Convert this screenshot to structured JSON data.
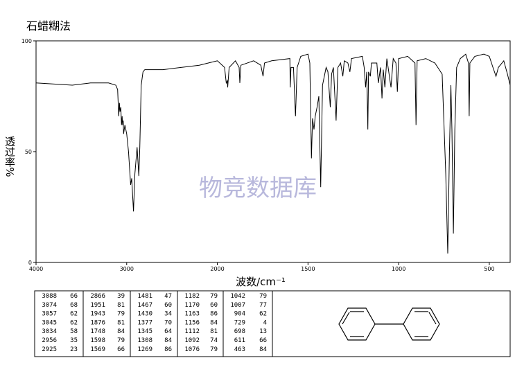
{
  "chart_data": {
    "type": "line",
    "title": "石蜡糊法",
    "x_label": "波数/cm⁻¹",
    "y_label": "透过率%",
    "watermark": "物竞数据库",
    "xlim": [
      4000,
      385
    ],
    "x_scale_break": 2000,
    "xticks": [
      4000,
      3000,
      2000,
      1500,
      1000,
      500
    ],
    "ylim": [
      0,
      100
    ],
    "yticks": [
      0,
      50,
      100
    ],
    "color": "#000000",
    "x": [
      4000,
      3800,
      3600,
      3400,
      3200,
      3120,
      3100,
      3088,
      3080,
      3074,
      3065,
      3057,
      3050,
      3045,
      3038,
      3034,
      3020,
      3000,
      2980,
      2956,
      2945,
      2925,
      2910,
      2885,
      2866,
      2855,
      2840,
      2820,
      2800,
      2600,
      2400,
      2200,
      2100,
      2000,
      1960,
      1951,
      1945,
      1943,
      1935,
      1900,
      1880,
      1876,
      1870,
      1800,
      1760,
      1748,
      1740,
      1700,
      1600,
      1598,
      1594,
      1580,
      1569,
      1560,
      1540,
      1500,
      1490,
      1481,
      1475,
      1467,
      1460,
      1450,
      1440,
      1430,
      1420,
      1400,
      1390,
      1377,
      1370,
      1360,
      1345,
      1335,
      1320,
      1308,
      1300,
      1280,
      1269,
      1260,
      1200,
      1190,
      1182,
      1176,
      1170,
      1166,
      1156,
      1150,
      1120,
      1112,
      1100,
      1092,
      1085,
      1076,
      1065,
      1042,
      1030,
      1015,
      1007,
      1000,
      950,
      910,
      904,
      898,
      850,
      800,
      760,
      740,
      729,
      720,
      712,
      706,
      698,
      690,
      680,
      660,
      630,
      615,
      611,
      607,
      580,
      530,
      500,
      480,
      463,
      450,
      420,
      400,
      385
    ],
    "y": [
      81,
      80.5,
      80,
      81,
      81,
      80,
      78,
      66,
      72,
      68,
      70,
      62,
      66,
      62,
      64,
      58,
      62,
      58,
      50,
      35,
      38,
      23,
      40,
      52,
      39,
      52,
      80,
      86,
      87,
      87,
      88,
      89,
      90,
      91,
      88,
      81,
      82,
      79,
      88,
      91,
      88,
      81,
      89,
      91,
      89,
      84,
      90,
      91,
      92,
      79,
      88,
      88,
      66,
      88,
      93,
      94,
      90,
      47,
      65,
      60,
      66,
      70,
      75,
      34,
      80,
      88,
      86,
      70,
      85,
      88,
      64,
      88,
      90,
      84,
      91,
      90,
      86,
      92,
      93,
      88,
      79,
      86,
      60,
      86,
      84,
      90,
      90,
      81,
      88,
      74,
      87,
      79,
      92,
      79,
      92,
      90,
      77,
      92,
      93,
      90,
      62,
      91,
      92,
      90,
      85,
      40,
      4,
      50,
      80,
      60,
      13,
      60,
      88,
      92,
      94,
      90,
      66,
      90,
      93,
      94,
      93,
      88,
      84,
      88,
      91,
      85,
      80
    ]
  },
  "peak_table": [
    [
      [
        3088,
        66
      ],
      [
        3074,
        68
      ],
      [
        3057,
        62
      ],
      [
        3045,
        62
      ],
      [
        3034,
        58
      ],
      [
        2956,
        35
      ],
      [
        2925,
        23
      ]
    ],
    [
      [
        2866,
        39
      ],
      [
        1951,
        81
      ],
      [
        1943,
        79
      ],
      [
        1876,
        81
      ],
      [
        1748,
        84
      ],
      [
        1598,
        79
      ],
      [
        1569,
        66
      ]
    ],
    [
      [
        1481,
        47
      ],
      [
        1467,
        60
      ],
      [
        1430,
        34
      ],
      [
        1377,
        70
      ],
      [
        1345,
        64
      ],
      [
        1308,
        84
      ],
      [
        1269,
        86
      ]
    ],
    [
      [
        1182,
        79
      ],
      [
        1170,
        60
      ],
      [
        1163,
        86
      ],
      [
        1156,
        84
      ],
      [
        1112,
        81
      ],
      [
        1092,
        74
      ],
      [
        1076,
        79
      ]
    ],
    [
      [
        1042,
        79
      ],
      [
        1007,
        77
      ],
      [
        904,
        62
      ],
      [
        729,
        4
      ],
      [
        698,
        13
      ],
      [
        611,
        66
      ],
      [
        463,
        84
      ]
    ]
  ]
}
